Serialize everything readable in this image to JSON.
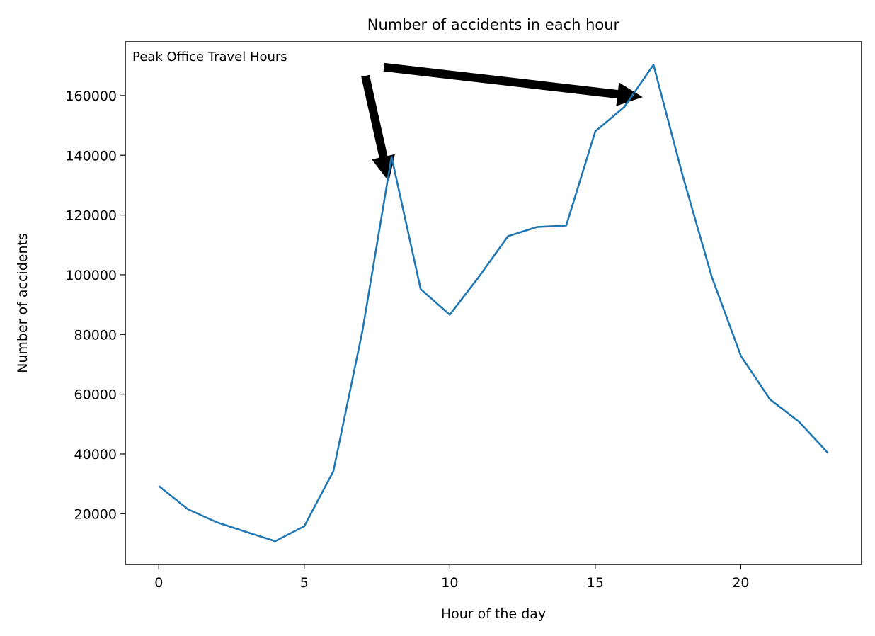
{
  "chart_data": {
    "type": "line",
    "title": "Number of accidents in each hour",
    "xlabel": "Hour of the day",
    "ylabel": "Number of accidents",
    "xlim": [
      -1.15,
      24.15
    ],
    "ylim": [
      3000,
      178000
    ],
    "xticks": [
      0,
      5,
      10,
      15,
      20
    ],
    "yticks": [
      20000,
      40000,
      60000,
      80000,
      100000,
      120000,
      140000,
      160000
    ],
    "grid": false,
    "series": [
      {
        "color": "#1f77b4",
        "x": [
          0,
          1,
          2,
          3,
          4,
          5,
          6,
          7,
          8,
          9,
          10,
          11,
          12,
          13,
          14,
          15,
          16,
          17,
          18,
          19,
          20,
          21,
          22,
          23
        ],
        "y": [
          29300,
          21500,
          17100,
          13900,
          10800,
          15800,
          34200,
          81200,
          139500,
          95200,
          86600,
          99300,
          112900,
          116000,
          116500,
          148000,
          156200,
          170300,
          133300,
          99400,
          72900,
          58300,
          50800,
          40300
        ]
      }
    ],
    "annotation": {
      "text": "Peak Office Travel Hours",
      "color": "#000000",
      "arrows": [
        {
          "from": [
            7.1,
            166500
          ],
          "to": [
            7.9,
            131500
          ]
        },
        {
          "from": [
            7.75,
            169500
          ],
          "to": [
            16.6,
            159500
          ]
        }
      ]
    }
  }
}
